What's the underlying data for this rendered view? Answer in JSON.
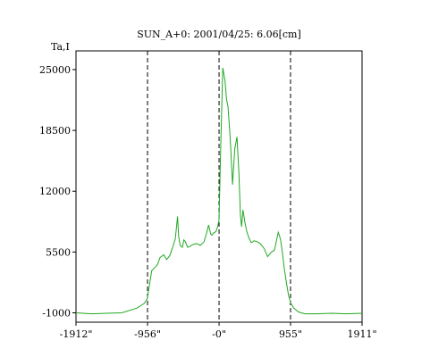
{
  "chart_data": {
    "type": "line",
    "title": "SUN_A+0: 2001/04/25: 6.06[cm]",
    "ylabel": "Ta,I",
    "xlabel": "",
    "x_ticks": [
      {
        "value": -1912,
        "label": "-1912\""
      },
      {
        "value": -956,
        "label": "-956\""
      },
      {
        "value": 0,
        "label": "-0\""
      },
      {
        "value": 955,
        "label": "955\""
      },
      {
        "value": 1911,
        "label": "1911\""
      }
    ],
    "y_ticks": [
      {
        "value": -1000,
        "label": "-1000"
      },
      {
        "value": 5500,
        "label": "5500"
      },
      {
        "value": 12000,
        "label": "12000"
      },
      {
        "value": 18500,
        "label": "18500"
      },
      {
        "value": 25000,
        "label": "25000"
      }
    ],
    "xlim": [
      -1912,
      1911
    ],
    "ylim": [
      -2000,
      27000
    ],
    "vlines": [
      -956,
      0,
      955
    ],
    "grid": false,
    "line_color": "#22a822",
    "series": [
      {
        "x": [
          -1912,
          -1700,
          -1500,
          -1300,
          -1100,
          -1000,
          -960,
          -930,
          -900,
          -850,
          -820,
          -790,
          -740,
          -700,
          -660,
          -620,
          -585,
          -555,
          -540,
          -520,
          -490,
          -470,
          -450,
          -420,
          -390,
          -350,
          -300,
          -250,
          -200,
          -160,
          -140,
          -110,
          -95,
          -80,
          -60,
          -40,
          -20,
          0,
          20,
          50,
          80,
          100,
          120,
          150,
          180,
          210,
          240,
          265,
          285,
          300,
          320,
          345,
          370,
          400,
          430,
          470,
          510,
          550,
          600,
          650,
          700,
          740,
          790,
          820,
          845,
          870,
          900,
          930,
          960,
          1000,
          1060,
          1100,
          1150,
          1200,
          1300,
          1500,
          1700,
          1911
        ],
        "y": [
          -1000,
          -1100,
          -1050,
          -1000,
          -500,
          0,
          500,
          2000,
          3500,
          3900,
          4200,
          4900,
          5200,
          4700,
          5100,
          6000,
          6900,
          9300,
          7200,
          6200,
          6000,
          6800,
          6600,
          6000,
          6100,
          6300,
          6400,
          6200,
          6600,
          7700,
          8400,
          7400,
          7300,
          7500,
          7600,
          7700,
          8200,
          8900,
          16000,
          25200,
          23800,
          21800,
          21000,
          17500,
          12700,
          16500,
          17800,
          14000,
          9500,
          8200,
          10000,
          8700,
          7700,
          7000,
          6500,
          6700,
          6600,
          6400,
          5900,
          5000,
          5500,
          5700,
          7600,
          6900,
          5500,
          3800,
          2200,
          800,
          0,
          -500,
          -900,
          -1000,
          -1100,
          -1100,
          -1100,
          -1050,
          -1100,
          -1050
        ]
      }
    ]
  }
}
